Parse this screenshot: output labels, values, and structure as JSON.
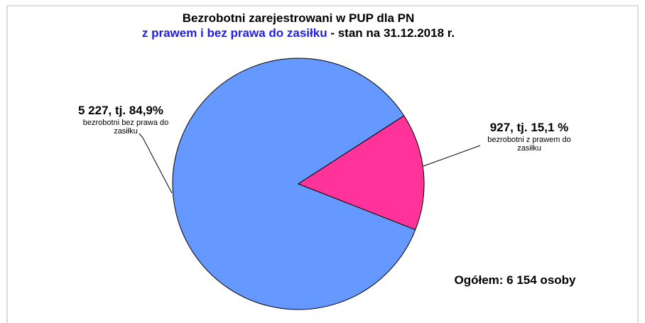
{
  "chart_data": {
    "type": "pie",
    "title": "Bezrobotni zarejestrowani w PUP dla PN",
    "subtitle": [
      "z prawem i bez prawa do zasiłku",
      " - stan na 31.12.2018 r."
    ],
    "categories": [
      "bezrobotni bez prawa do zasiłku",
      "bezrobotni z prawem do zasiłku"
    ],
    "values": [
      5227,
      927
    ],
    "value_labels": [
      "5 227, tj. 84,9%",
      "927, tj. 15,1 %"
    ],
    "colors": [
      "#6699ff",
      "#ff3399"
    ],
    "annotation": "Ogółem: 6 154 osoby"
  }
}
